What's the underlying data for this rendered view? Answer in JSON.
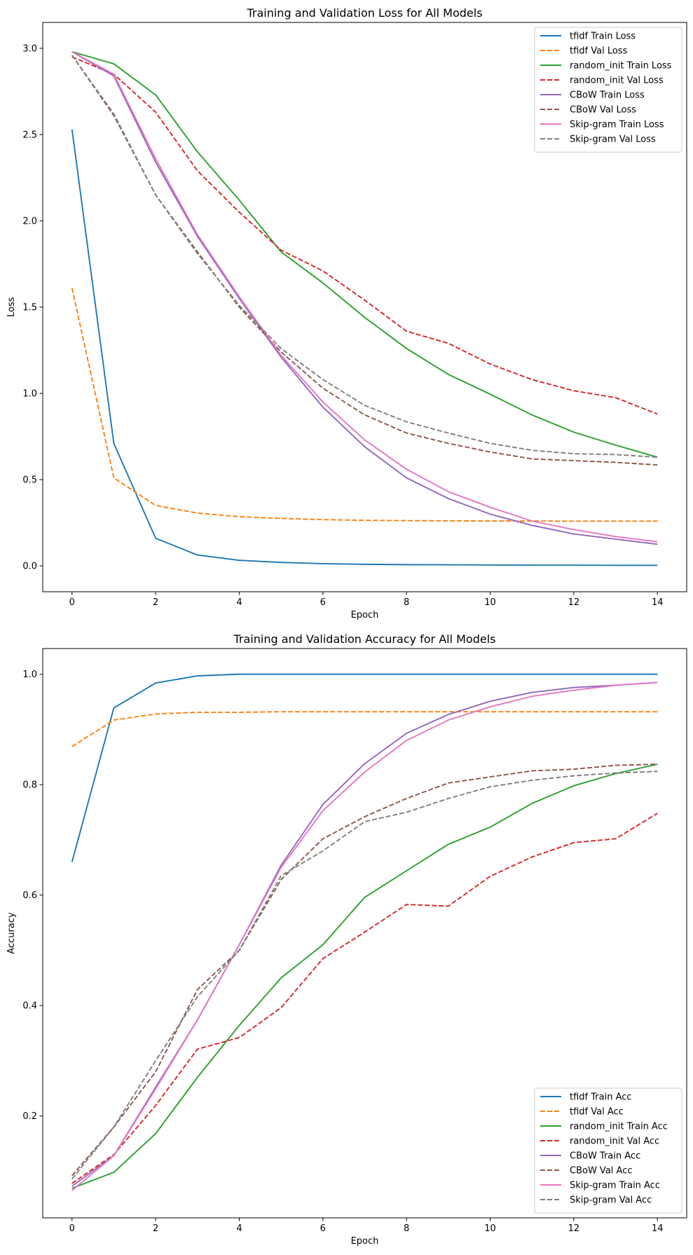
{
  "chart_data": [
    {
      "type": "line",
      "title": "Training and Validation Loss for All Models",
      "xlabel": "Epoch",
      "ylabel": "Loss",
      "x": [
        0,
        1,
        2,
        3,
        4,
        5,
        6,
        7,
        8,
        9,
        10,
        11,
        12,
        13,
        14
      ],
      "xlim": [
        -0.7,
        14.7
      ],
      "ylim": [
        -0.15,
        3.15
      ],
      "xticks": [
        0,
        2,
        4,
        6,
        8,
        10,
        12,
        14
      ],
      "yticks": [
        0.0,
        0.5,
        1.0,
        1.5,
        2.0,
        2.5,
        3.0
      ],
      "ytick_labels": [
        "0.0",
        "0.5",
        "1.0",
        "1.5",
        "2.0",
        "2.5",
        "3.0"
      ],
      "grid": false,
      "legend_position": "top-right",
      "series": [
        {
          "name": "tfidf Train Loss",
          "color": "#1f77b4",
          "dash": "solid",
          "values": [
            2.53,
            0.71,
            0.16,
            0.063,
            0.032,
            0.02,
            0.013,
            0.009,
            0.007,
            0.006,
            0.005,
            0.004,
            0.004,
            0.003,
            0.003
          ]
        },
        {
          "name": "tfidf Val Loss",
          "color": "#ff7f0e",
          "dash": "dashed",
          "values": [
            1.61,
            0.51,
            0.35,
            0.306,
            0.285,
            0.275,
            0.268,
            0.264,
            0.262,
            0.261,
            0.26,
            0.26,
            0.259,
            0.259,
            0.259
          ]
        },
        {
          "name": "random_init Train Loss",
          "color": "#2ca02c",
          "dash": "solid",
          "values": [
            2.98,
            2.91,
            2.73,
            2.4,
            2.12,
            1.82,
            1.64,
            1.44,
            1.26,
            1.11,
            0.995,
            0.875,
            0.775,
            0.7,
            0.63
          ]
        },
        {
          "name": "random_init Val Loss",
          "color": "#d62728",
          "dash": "dashed",
          "values": [
            2.95,
            2.85,
            2.63,
            2.29,
            2.05,
            1.83,
            1.71,
            1.54,
            1.36,
            1.29,
            1.17,
            1.08,
            1.015,
            0.975,
            0.88
          ]
        },
        {
          "name": "CBoW Train Loss",
          "color": "#9467bd",
          "dash": "solid",
          "values": [
            2.98,
            2.84,
            2.34,
            1.91,
            1.55,
            1.21,
            0.92,
            0.69,
            0.51,
            0.39,
            0.3,
            0.235,
            0.185,
            0.155,
            0.125
          ]
        },
        {
          "name": "CBoW Val Loss",
          "color": "#8c564b",
          "dash": "dashed",
          "values": [
            2.96,
            2.61,
            2.15,
            1.82,
            1.5,
            1.24,
            1.03,
            0.875,
            0.77,
            0.71,
            0.66,
            0.62,
            0.61,
            0.6,
            0.585
          ]
        },
        {
          "name": "Skip-gram Train Loss",
          "color": "#e377c2",
          "dash": "solid",
          "values": [
            2.98,
            2.85,
            2.36,
            1.92,
            1.56,
            1.22,
            0.95,
            0.73,
            0.56,
            0.43,
            0.34,
            0.26,
            0.21,
            0.17,
            0.14
          ]
        },
        {
          "name": "Skip-gram Val Loss",
          "color": "#7f7f7f",
          "dash": "dashed",
          "values": [
            2.96,
            2.62,
            2.15,
            1.81,
            1.51,
            1.26,
            1.08,
            0.93,
            0.835,
            0.77,
            0.71,
            0.67,
            0.65,
            0.645,
            0.63
          ]
        }
      ]
    },
    {
      "type": "line",
      "title": "Training and Validation Accuracy for All Models",
      "xlabel": "Epoch",
      "ylabel": "Accuracy",
      "x": [
        0,
        1,
        2,
        3,
        4,
        5,
        6,
        7,
        8,
        9,
        10,
        11,
        12,
        13,
        14
      ],
      "xlim": [
        -0.7,
        14.7
      ],
      "ylim": [
        0.0155,
        1.0465
      ],
      "xticks": [
        0,
        2,
        4,
        6,
        8,
        10,
        12,
        14
      ],
      "yticks": [
        0.2,
        0.4,
        0.6,
        0.8,
        1.0
      ],
      "ytick_labels": [
        "0.2",
        "0.4",
        "0.6",
        "0.8",
        "1.0"
      ],
      "grid": false,
      "legend_position": "bottom-right",
      "series": [
        {
          "name": "tfidf Train Acc",
          "color": "#1f77b4",
          "dash": "solid",
          "values": [
            0.66,
            0.939,
            0.984,
            0.997,
            1.0,
            1.0,
            1.0,
            1.0,
            1.0,
            1.0,
            1.0,
            1.0,
            1.0,
            1.0,
            1.0
          ]
        },
        {
          "name": "tfidf Val Acc",
          "color": "#ff7f0e",
          "dash": "dashed",
          "values": [
            0.869,
            0.917,
            0.928,
            0.931,
            0.931,
            0.932,
            0.932,
            0.932,
            0.932,
            0.932,
            0.932,
            0.932,
            0.932,
            0.932,
            0.932
          ]
        },
        {
          "name": "random_init Train Acc",
          "color": "#2ca02c",
          "dash": "solid",
          "values": [
            0.069,
            0.098,
            0.168,
            0.27,
            0.364,
            0.45,
            0.51,
            0.596,
            0.644,
            0.692,
            0.723,
            0.766,
            0.798,
            0.82,
            0.837
          ]
        },
        {
          "name": "random_init Val Acc",
          "color": "#d62728",
          "dash": "dashed",
          "values": [
            0.078,
            0.13,
            0.219,
            0.321,
            0.342,
            0.396,
            0.485,
            0.533,
            0.583,
            0.58,
            0.634,
            0.669,
            0.695,
            0.702,
            0.748
          ]
        },
        {
          "name": "CBoW Train Acc",
          "color": "#9467bd",
          "dash": "solid",
          "values": [
            0.073,
            0.128,
            0.252,
            0.374,
            0.51,
            0.654,
            0.764,
            0.838,
            0.893,
            0.927,
            0.951,
            0.967,
            0.976,
            0.98,
            0.985
          ]
        },
        {
          "name": "CBoW Val Acc",
          "color": "#8c564b",
          "dash": "dashed",
          "values": [
            0.092,
            0.18,
            0.28,
            0.429,
            0.5,
            0.628,
            0.702,
            0.742,
            0.775,
            0.803,
            0.814,
            0.825,
            0.828,
            0.835,
            0.837
          ]
        },
        {
          "name": "Skip-gram Train Acc",
          "color": "#e377c2",
          "dash": "solid",
          "values": [
            0.065,
            0.128,
            0.249,
            0.374,
            0.51,
            0.65,
            0.753,
            0.823,
            0.88,
            0.917,
            0.941,
            0.96,
            0.971,
            0.98,
            0.985
          ]
        },
        {
          "name": "Skip-gram Val Acc",
          "color": "#7f7f7f",
          "dash": "dashed",
          "values": [
            0.086,
            0.18,
            0.3,
            0.416,
            0.5,
            0.635,
            0.68,
            0.733,
            0.75,
            0.775,
            0.796,
            0.808,
            0.816,
            0.821,
            0.824
          ]
        }
      ]
    }
  ]
}
